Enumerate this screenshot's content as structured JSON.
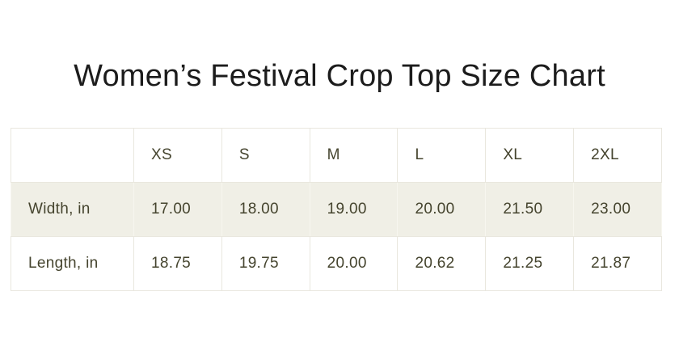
{
  "page": {
    "title": "Women’s Festival Crop Top Size Chart"
  },
  "size_chart": {
    "columns": [
      "XS",
      "S",
      "M",
      "L",
      "XL",
      "2XL"
    ],
    "rows": [
      {
        "label": "Width, in",
        "values": [
          "17.00",
          "18.00",
          "19.00",
          "20.00",
          "21.50",
          "23.00"
        ]
      },
      {
        "label": "Length, in",
        "values": [
          "18.75",
          "19.75",
          "20.00",
          "20.62",
          "21.25",
          "21.87"
        ]
      }
    ],
    "units": "in",
    "colors": {
      "title_text": "#1c1c1c",
      "table_text": "#45442e",
      "row_highlight_bg": "#f0efe6",
      "border": "#e9e7de",
      "page_bg": "#ffffff"
    }
  }
}
